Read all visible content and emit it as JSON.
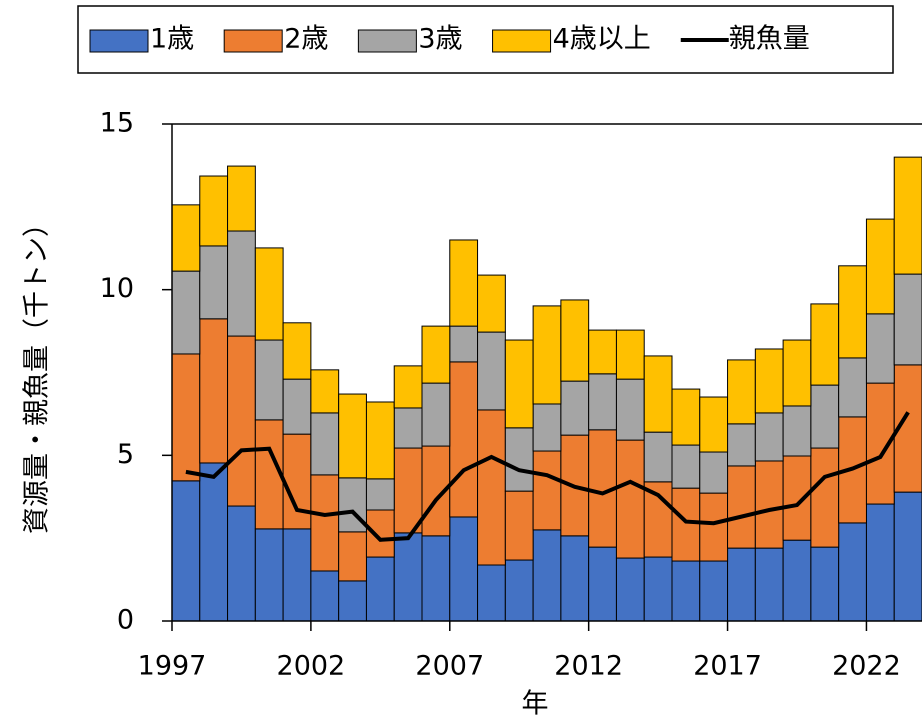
{
  "chart_data": {
    "type": "bar",
    "stacked": true,
    "x_label": "年",
    "y_label": "資源量・親魚量（千トン）",
    "x": [
      1997,
      1998,
      1999,
      2000,
      2001,
      2002,
      2003,
      2004,
      2005,
      2006,
      2007,
      2008,
      2009,
      2010,
      2011,
      2012,
      2013,
      2014,
      2015,
      2016,
      2017,
      2018,
      2019,
      2020,
      2021,
      2022,
      2023
    ],
    "series": [
      {
        "name": "1歳",
        "color": "#4472c4",
        "values": [
          4.23,
          4.77,
          3.47,
          2.78,
          2.78,
          1.51,
          1.21,
          1.93,
          2.66,
          2.57,
          3.14,
          1.69,
          1.84,
          2.75,
          2.57,
          2.23,
          1.9,
          1.93,
          1.81,
          1.81,
          2.2,
          2.2,
          2.44,
          2.23,
          2.96,
          3.53,
          3.89
        ]
      },
      {
        "name": "2歳",
        "color": "#ed7d31",
        "values": [
          3.83,
          4.35,
          5.13,
          3.29,
          2.86,
          2.9,
          1.48,
          1.42,
          2.56,
          2.71,
          4.68,
          4.68,
          2.08,
          2.38,
          3.04,
          3.54,
          3.56,
          2.27,
          2.2,
          2.05,
          2.48,
          2.63,
          2.54,
          2.99,
          3.2,
          3.65,
          3.84
        ]
      },
      {
        "name": "3歳",
        "color": "#a5a5a5",
        "values": [
          2.5,
          2.2,
          3.17,
          2.41,
          1.66,
          1.87,
          1.63,
          0.94,
          1.21,
          1.9,
          1.08,
          2.35,
          1.91,
          1.42,
          1.63,
          1.69,
          1.84,
          1.5,
          1.3,
          1.24,
          1.27,
          1.45,
          1.51,
          1.9,
          1.78,
          2.09,
          2.74
        ]
      },
      {
        "name": "4歳以上",
        "color": "#ffc000",
        "values": [
          2.0,
          2.11,
          1.96,
          2.78,
          1.7,
          1.3,
          2.53,
          2.32,
          1.27,
          1.72,
          2.6,
          1.72,
          2.65,
          2.96,
          2.45,
          1.32,
          1.48,
          2.3,
          1.69,
          1.66,
          1.93,
          1.93,
          1.99,
          2.45,
          2.78,
          2.86,
          3.53
        ]
      },
      {
        "name": "親魚量",
        "type": "line",
        "color": "#000000",
        "values": [
          4.5,
          4.35,
          5.15,
          5.2,
          3.35,
          3.2,
          3.3,
          2.45,
          2.5,
          3.65,
          4.55,
          4.95,
          4.55,
          4.4,
          4.05,
          3.85,
          4.2,
          3.8,
          3.0,
          2.95,
          3.15,
          3.35,
          3.5,
          4.35,
          4.6,
          4.95,
          6.3
        ]
      }
    ],
    "xlim": [
      1997,
      2024
    ],
    "xticks": [
      1997,
      2002,
      2007,
      2012,
      2017,
      2022
    ],
    "ylim": [
      0,
      15
    ],
    "yticks": [
      0,
      5,
      10,
      15
    ],
    "legend": "top"
  }
}
